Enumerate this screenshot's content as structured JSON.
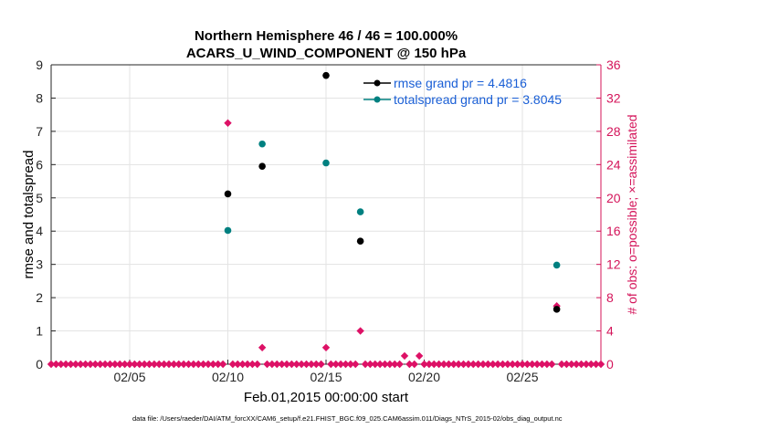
{
  "chart_data": {
    "type": "scatter",
    "title_line1": "Northern Hemisphere 46 / 46 = 100.000%",
    "title_line2": "ACARS_U_WIND_COMPONENT @ 150 hPa",
    "xlabel": "Feb.01,2015 00:00:00 start",
    "ylabel_left": "rmse and totalspread",
    "ylabel_right": "# of obs: o=possible; ×=assimilated",
    "footer": "data file: /Users/raeder/DAI/ATM_forcXX/CAM6_setup/f.e21.FHIST_BGC.f09_025.CAM6assim.011/Diags_NTrS_2015-02/obs_diag_output.nc",
    "xlim": [
      1,
      29
    ],
    "x_ticks": [
      {
        "value": 5,
        "label": "02/05"
      },
      {
        "value": 10,
        "label": "02/10"
      },
      {
        "value": 15,
        "label": "02/15"
      },
      {
        "value": 20,
        "label": "02/20"
      },
      {
        "value": 25,
        "label": "02/25"
      }
    ],
    "ylim_left": [
      0,
      9
    ],
    "y_ticks_left": [
      "0",
      "1",
      "2",
      "3",
      "4",
      "5",
      "6",
      "7",
      "8",
      "9"
    ],
    "ylim_right": [
      0,
      36
    ],
    "y_ticks_right": [
      "0",
      "4",
      "8",
      "12",
      "16",
      "20",
      "24",
      "28",
      "32",
      "36"
    ],
    "grid": true,
    "legend_position": "top-right",
    "series": [
      {
        "name": "rmse",
        "legend": "rmse grand pr = 4.4816",
        "color": "#000000",
        "axis": "left",
        "points": [
          [
            10,
            5.12
          ],
          [
            11.75,
            5.95
          ],
          [
            15,
            8.68
          ],
          [
            16.75,
            3.7
          ],
          [
            26.75,
            1.65
          ]
        ]
      },
      {
        "name": "totalspread",
        "legend": "totalspread grand pr = 3.8045",
        "color": "#008080",
        "axis": "left",
        "points": [
          [
            10,
            4.02
          ],
          [
            11.75,
            6.62
          ],
          [
            15,
            6.05
          ],
          [
            16.75,
            4.58
          ],
          [
            26.75,
            2.98
          ]
        ]
      }
    ],
    "obs_counts": {
      "color": "#dd1166",
      "axis": "right",
      "x_start": 1,
      "x_step": 0.25,
      "nonzero": [
        [
          10,
          29
        ],
        [
          11.75,
          2
        ],
        [
          15,
          2
        ],
        [
          16.75,
          4
        ],
        [
          19,
          1
        ],
        [
          19.75,
          1
        ],
        [
          26.75,
          7
        ]
      ]
    },
    "legend_text_color": "#1a5fd6",
    "right_axis_color": "#d4145a"
  }
}
